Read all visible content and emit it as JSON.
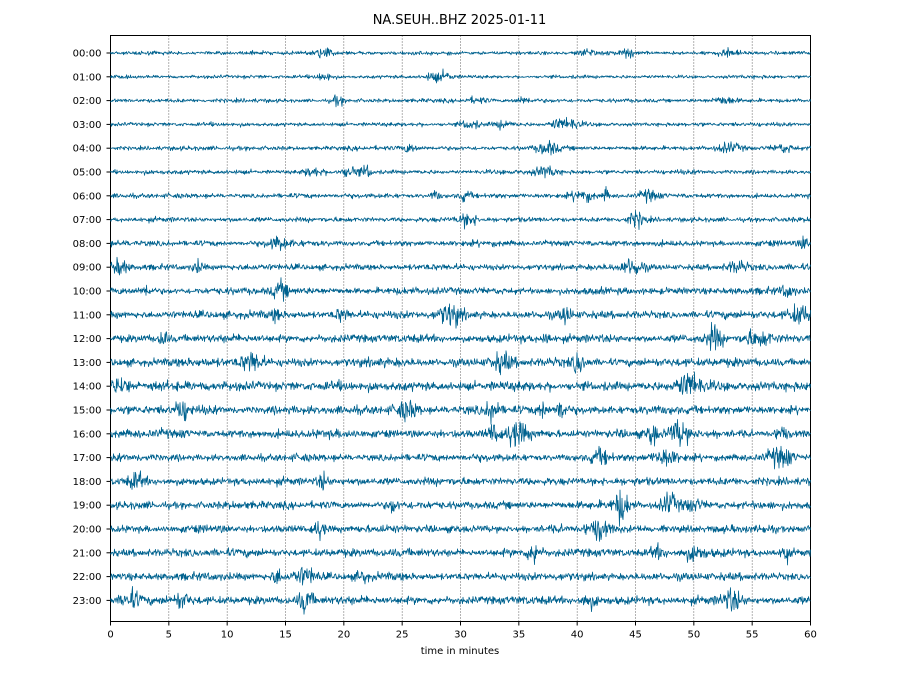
{
  "chart_data": {
    "type": "line",
    "title": "NA.SEUH..BHZ 2025-01-11",
    "xlabel": "time in minutes",
    "ylabel": "",
    "xlim": [
      0,
      60
    ],
    "x_ticks": [
      "0",
      "5",
      "10",
      "15",
      "20",
      "25",
      "30",
      "35",
      "40",
      "45",
      "50",
      "55",
      "60"
    ],
    "vertical_grid": true,
    "grid_style": "dotted",
    "trace_color": "#00628f",
    "rows": [
      {
        "label": "00:00",
        "amplitude": 0.14
      },
      {
        "label": "01:00",
        "amplitude": 0.13
      },
      {
        "label": "02:00",
        "amplitude": 0.15
      },
      {
        "label": "03:00",
        "amplitude": 0.15
      },
      {
        "label": "04:00",
        "amplitude": 0.17
      },
      {
        "label": "05:00",
        "amplitude": 0.17
      },
      {
        "label": "06:00",
        "amplitude": 0.18
      },
      {
        "label": "07:00",
        "amplitude": 0.19
      },
      {
        "label": "08:00",
        "amplitude": 0.22
      },
      {
        "label": "09:00",
        "amplitude": 0.24
      },
      {
        "label": "10:00",
        "amplitude": 0.27
      },
      {
        "label": "11:00",
        "amplitude": 0.3
      },
      {
        "label": "12:00",
        "amplitude": 0.31
      },
      {
        "label": "13:00",
        "amplitude": 0.33
      },
      {
        "label": "14:00",
        "amplitude": 0.36
      },
      {
        "label": "15:00",
        "amplitude": 0.33
      },
      {
        "label": "16:00",
        "amplitude": 0.32
      },
      {
        "label": "17:00",
        "amplitude": 0.28
      },
      {
        "label": "18:00",
        "amplitude": 0.3
      },
      {
        "label": "19:00",
        "amplitude": 0.3
      },
      {
        "label": "20:00",
        "amplitude": 0.29
      },
      {
        "label": "21:00",
        "amplitude": 0.31
      },
      {
        "label": "22:00",
        "amplitude": 0.3
      },
      {
        "label": "23:00",
        "amplitude": 0.32
      }
    ]
  }
}
